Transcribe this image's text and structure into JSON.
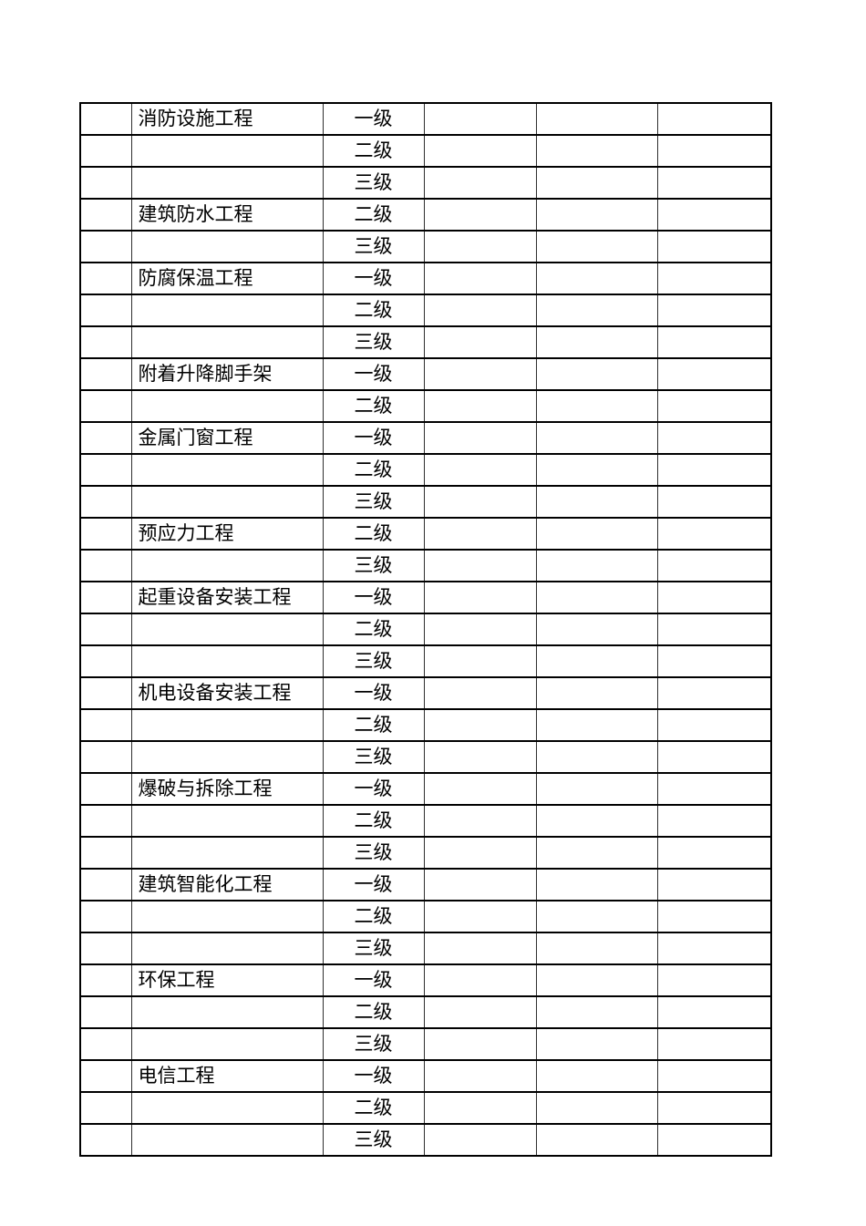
{
  "document": {
    "background_color": "#ffffff",
    "grid_color": "#000000",
    "text_color": "#000000"
  },
  "table": {
    "column_count": 6,
    "groups": [
      {
        "name": "消防设施工程",
        "grades": [
          "一级",
          "二级",
          "三级"
        ]
      },
      {
        "name": "建筑防水工程",
        "grades": [
          "二级",
          "三级"
        ]
      },
      {
        "name": "防腐保温工程",
        "grades": [
          "一级",
          "二级",
          "三级"
        ]
      },
      {
        "name": "附着升降脚手架",
        "grades": [
          "一级",
          "二级"
        ]
      },
      {
        "name": "金属门窗工程",
        "grades": [
          "一级",
          "二级",
          "三级"
        ]
      },
      {
        "name": "预应力工程",
        "grades": [
          "二级",
          "三级"
        ]
      },
      {
        "name": "起重设备安装工程",
        "grades": [
          "一级",
          "二级",
          "三级"
        ]
      },
      {
        "name": "机电设备安装工程",
        "grades": [
          "一级",
          "二级",
          "三级"
        ]
      },
      {
        "name": "爆破与拆除工程",
        "grades": [
          "一级",
          "二级",
          "三级"
        ]
      },
      {
        "name": "建筑智能化工程",
        "grades": [
          "一级",
          "二级",
          "三级"
        ]
      },
      {
        "name": "环保工程",
        "grades": [
          "一级",
          "二级",
          "三级"
        ]
      },
      {
        "name": "电信工程",
        "grades": [
          "一级",
          "二级",
          "三级"
        ]
      }
    ]
  }
}
